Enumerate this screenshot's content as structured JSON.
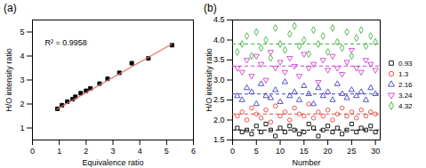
{
  "chart_data": [
    {
      "type": "scatter",
      "title": "(a)",
      "x_label": "Equivalence ratio",
      "y_label": "H/O intensity ratio",
      "x": [
        0.93,
        1.1,
        1.3,
        1.5,
        1.6,
        1.8,
        2.0,
        2.16,
        2.5,
        2.8,
        3.24,
        3.7,
        4.32,
        5.2
      ],
      "series": [
        {
          "type": "scatter",
          "color": "#000000",
          "marker": "square",
          "values": [
            1.8,
            1.95,
            2.1,
            2.2,
            2.3,
            2.45,
            2.55,
            2.65,
            2.85,
            3.05,
            3.3,
            3.7,
            3.9,
            4.45
          ]
        },
        {
          "type": "line",
          "color": "#e07070",
          "line_style": "solid",
          "x": [
            0.9,
            5.2
          ],
          "values": [
            1.78,
            4.5
          ]
        }
      ],
      "annotations": [
        "R² = 0.9958"
      ],
      "xlim": [
        0,
        6
      ],
      "xticks": [
        0,
        1,
        2,
        3,
        4,
        5,
        6
      ],
      "ylim": [
        0.5,
        5.5
      ],
      "yticks": [
        1,
        2,
        3,
        4,
        5
      ],
      "grid": false
    },
    {
      "type": "scatter",
      "title": "(b)",
      "x_label": "Number",
      "y_label": "H/O intensity ratio",
      "x": [
        1,
        2,
        3,
        4,
        5,
        6,
        7,
        8,
        9,
        10,
        11,
        12,
        13,
        14,
        15,
        16,
        17,
        18,
        19,
        20,
        21,
        22,
        23,
        24,
        25,
        26,
        27,
        28,
        29,
        30
      ],
      "series": [
        {
          "name": "0.93",
          "color": "#000000",
          "marker": "square",
          "line_style": "dashed",
          "mean": 1.75,
          "values": [
            1.8,
            1.7,
            1.75,
            1.65,
            1.85,
            1.7,
            1.9,
            1.75,
            1.6,
            1.8,
            1.7,
            1.85,
            1.75,
            1.65,
            1.7,
            1.9,
            1.8,
            1.6,
            1.75,
            1.85,
            1.7,
            1.8,
            1.65,
            1.75,
            1.9,
            1.7,
            1.8,
            1.75,
            1.85,
            1.7
          ]
        },
        {
          "name": "1.3",
          "color": "#e8453c",
          "marker": "circle",
          "line_style": "dashed",
          "mean": 2.15,
          "values": [
            2.1,
            2.2,
            2.0,
            2.3,
            2.15,
            2.05,
            2.25,
            1.95,
            2.35,
            2.1,
            2.2,
            2.0,
            2.3,
            2.15,
            2.1,
            2.4,
            2.05,
            2.2,
            2.1,
            2.25,
            2.0,
            2.15,
            2.3,
            2.1,
            2.2,
            2.05,
            2.25,
            2.1,
            2.2,
            2.15
          ]
        },
        {
          "name": "2.16",
          "color": "#4040c0",
          "marker": "triangle",
          "line_style": "dashed",
          "mean": 2.65,
          "values": [
            2.6,
            2.5,
            2.8,
            2.7,
            2.4,
            2.9,
            2.6,
            2.55,
            2.75,
            2.45,
            2.95,
            2.6,
            2.7,
            2.5,
            2.85,
            2.65,
            2.4,
            2.8,
            2.6,
            2.7,
            2.5,
            2.9,
            2.65,
            2.55,
            2.75,
            2.6,
            2.7,
            2.5,
            2.8,
            2.65
          ]
        },
        {
          "name": "3.24",
          "color": "#d040d0",
          "marker": "triangle-down",
          "line_style": "dashed",
          "mean": 3.35,
          "values": [
            3.3,
            3.2,
            3.5,
            3.1,
            3.6,
            3.4,
            3.0,
            3.7,
            3.3,
            3.45,
            3.2,
            3.55,
            3.35,
            3.1,
            3.65,
            3.3,
            3.4,
            2.95,
            3.5,
            3.25,
            3.6,
            3.3,
            3.15,
            3.45,
            3.75,
            3.3,
            3.2,
            3.5,
            3.4,
            3.25
          ]
        },
        {
          "name": "4.32",
          "color": "#40b040",
          "marker": "diamond",
          "line_style": "dashed",
          "mean": 3.9,
          "values": [
            3.7,
            3.9,
            4.1,
            3.6,
            4.2,
            3.8,
            4.0,
            3.55,
            4.3,
            3.9,
            3.75,
            4.15,
            4.35,
            3.85,
            4.0,
            3.65,
            4.25,
            3.9,
            4.1,
            3.7,
            4.3,
            3.95,
            3.8,
            4.2,
            3.6,
            4.05,
            4.25,
            3.85,
            4.1,
            3.95
          ]
        }
      ],
      "xlim": [
        0,
        31
      ],
      "xticks": [
        0,
        5,
        10,
        15,
        20,
        25,
        30
      ],
      "ylim": [
        1.5,
        4.5
      ],
      "yticks": [
        1.5,
        {
          "value": 2,
          "label": "2.0"
        },
        2.5,
        {
          "value": 3,
          "label": "3.0"
        },
        3.5,
        {
          "value": 4,
          "label": "4.0"
        },
        4.5
      ],
      "grid": false,
      "legend": "right"
    }
  ]
}
